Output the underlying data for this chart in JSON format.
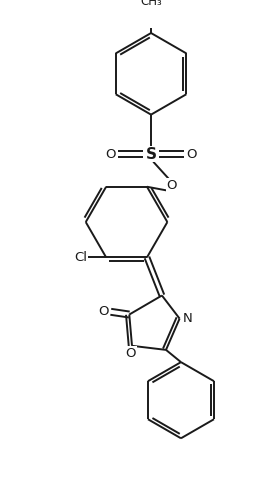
{
  "bg_color": "#ffffff",
  "line_color": "#1a1a1a",
  "line_width": 1.4,
  "figsize": [
    2.64,
    4.9
  ],
  "dpi": 100,
  "xlim": [
    -4.5,
    4.5
  ],
  "ylim": [
    -8.5,
    8.5
  ]
}
